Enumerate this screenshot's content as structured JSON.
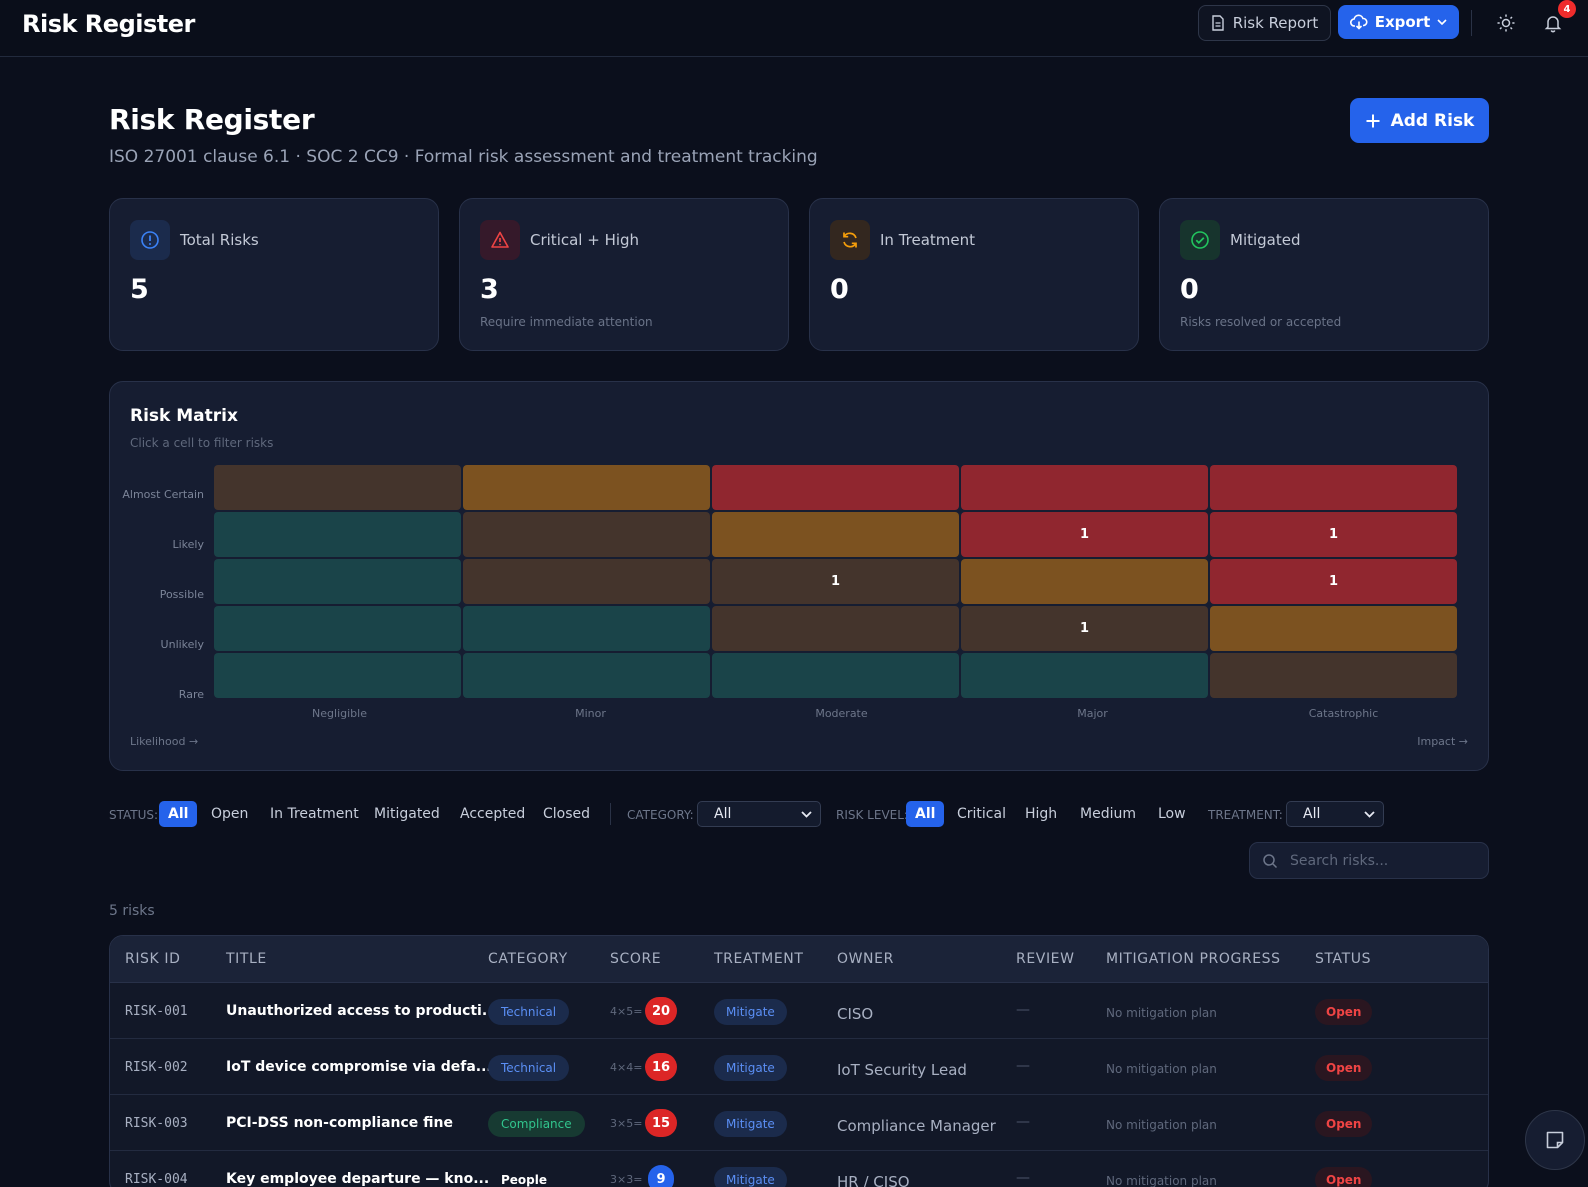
{
  "app": {
    "title": "Risk Register",
    "notification_count": "4"
  },
  "toolbar": {
    "report_label": "Risk Report",
    "export_label": "Export"
  },
  "header": {
    "title": "Risk Register",
    "subtitle": "ISO 27001 clause 6.1 · SOC 2 CC9 · Formal risk assessment and treatment tracking",
    "add_label": "Add Risk"
  },
  "stats": [
    {
      "label": "Total Risks",
      "value": "5",
      "note": "",
      "icon": "info-circle-icon",
      "color": "#3b82f6"
    },
    {
      "label": "Critical + High",
      "value": "3",
      "note": "Require immediate attention",
      "icon": "warning-triangle-icon",
      "color": "#ef4444"
    },
    {
      "label": "In Treatment",
      "value": "0",
      "note": "",
      "icon": "refresh-icon",
      "color": "#f59e0b"
    },
    {
      "label": "Mitigated",
      "value": "0",
      "note": "Risks resolved or accepted",
      "icon": "check-circle-icon",
      "color": "#22c55e"
    }
  ],
  "matrix": {
    "title": "Risk Matrix",
    "subtitle": "Click a cell to filter risks",
    "likelihood": [
      "Almost Certain",
      "Likely",
      "Possible",
      "Unlikely",
      "Rare"
    ],
    "impact": [
      "Negligible",
      "Minor",
      "Moderate",
      "Major",
      "Catastrophic"
    ],
    "levels": [
      [
        "med",
        "high",
        "crit",
        "crit",
        "crit"
      ],
      [
        "low",
        "med",
        "high",
        "crit",
        "crit"
      ],
      [
        "low",
        "med",
        "med",
        "high",
        "crit"
      ],
      [
        "low",
        "low",
        "med",
        "med",
        "high"
      ],
      [
        "low",
        "low",
        "low",
        "low",
        "med"
      ]
    ],
    "counts": [
      [
        "",
        "",
        "",
        "",
        ""
      ],
      [
        "",
        "",
        "",
        "1",
        "1"
      ],
      [
        "",
        "",
        "1",
        "",
        "1"
      ],
      [
        "",
        "",
        "",
        "1",
        ""
      ],
      [
        "",
        "",
        "",
        "",
        ""
      ]
    ],
    "likelihood_axis": "Likelihood →",
    "impact_axis": "Impact →",
    "level_colors": {
      "low": "#1a4449",
      "med": "#44342c",
      "high": "#7c5220",
      "crit": "#90262f"
    }
  },
  "filters": {
    "status_label": "STATUS:",
    "status_options": [
      "All",
      "Open",
      "In Treatment",
      "Mitigated",
      "Accepted",
      "Closed"
    ],
    "status_selected": "All",
    "category_label": "CATEGORY:",
    "category_value": "All",
    "level_label": "RISK LEVEL:",
    "level_options": [
      "All",
      "Critical",
      "High",
      "Medium",
      "Low"
    ],
    "level_selected": "All",
    "treatment_label": "TREATMENT:",
    "treatment_value": "All",
    "search_placeholder": "Search risks..."
  },
  "results": {
    "count_label": "5 risks"
  },
  "table": {
    "columns": [
      "RISK ID",
      "TITLE",
      "CATEGORY",
      "SCORE",
      "TREATMENT",
      "OWNER",
      "REVIEW",
      "MITIGATION PROGRESS",
      "STATUS"
    ],
    "rows": [
      {
        "id": "RISK-001",
        "title": "Unauthorized access to producti...",
        "category": "Technical",
        "cat_style": "tech",
        "formula": "4×5=",
        "score": "20",
        "score_style": "red",
        "treatment": "Mitigate",
        "owner": "CISO",
        "review": "—",
        "mitigation": "No mitigation plan",
        "status": "Open"
      },
      {
        "id": "RISK-002",
        "title": "IoT device compromise via defa...",
        "category": "Technical",
        "cat_style": "tech",
        "formula": "4×4=",
        "score": "16",
        "score_style": "red",
        "treatment": "Mitigate",
        "owner": "IoT Security Lead",
        "review": "—",
        "mitigation": "No mitigation plan",
        "status": "Open"
      },
      {
        "id": "RISK-003",
        "title": "PCI-DSS non-compliance fine",
        "category": "Compliance",
        "cat_style": "comp",
        "formula": "3×5=",
        "score": "15",
        "score_style": "red",
        "treatment": "Mitigate",
        "owner": "Compliance Manager",
        "review": "—",
        "mitigation": "No mitigation plan",
        "status": "Open"
      },
      {
        "id": "RISK-004",
        "title": "Key employee departure — kno...",
        "category": "People",
        "cat_style": "people",
        "formula": "3×3=",
        "score": "9",
        "score_style": "blue",
        "treatment": "Mitigate",
        "owner": "HR / CISO",
        "review": "—",
        "mitigation": "No mitigation plan",
        "status": "Open"
      }
    ]
  }
}
